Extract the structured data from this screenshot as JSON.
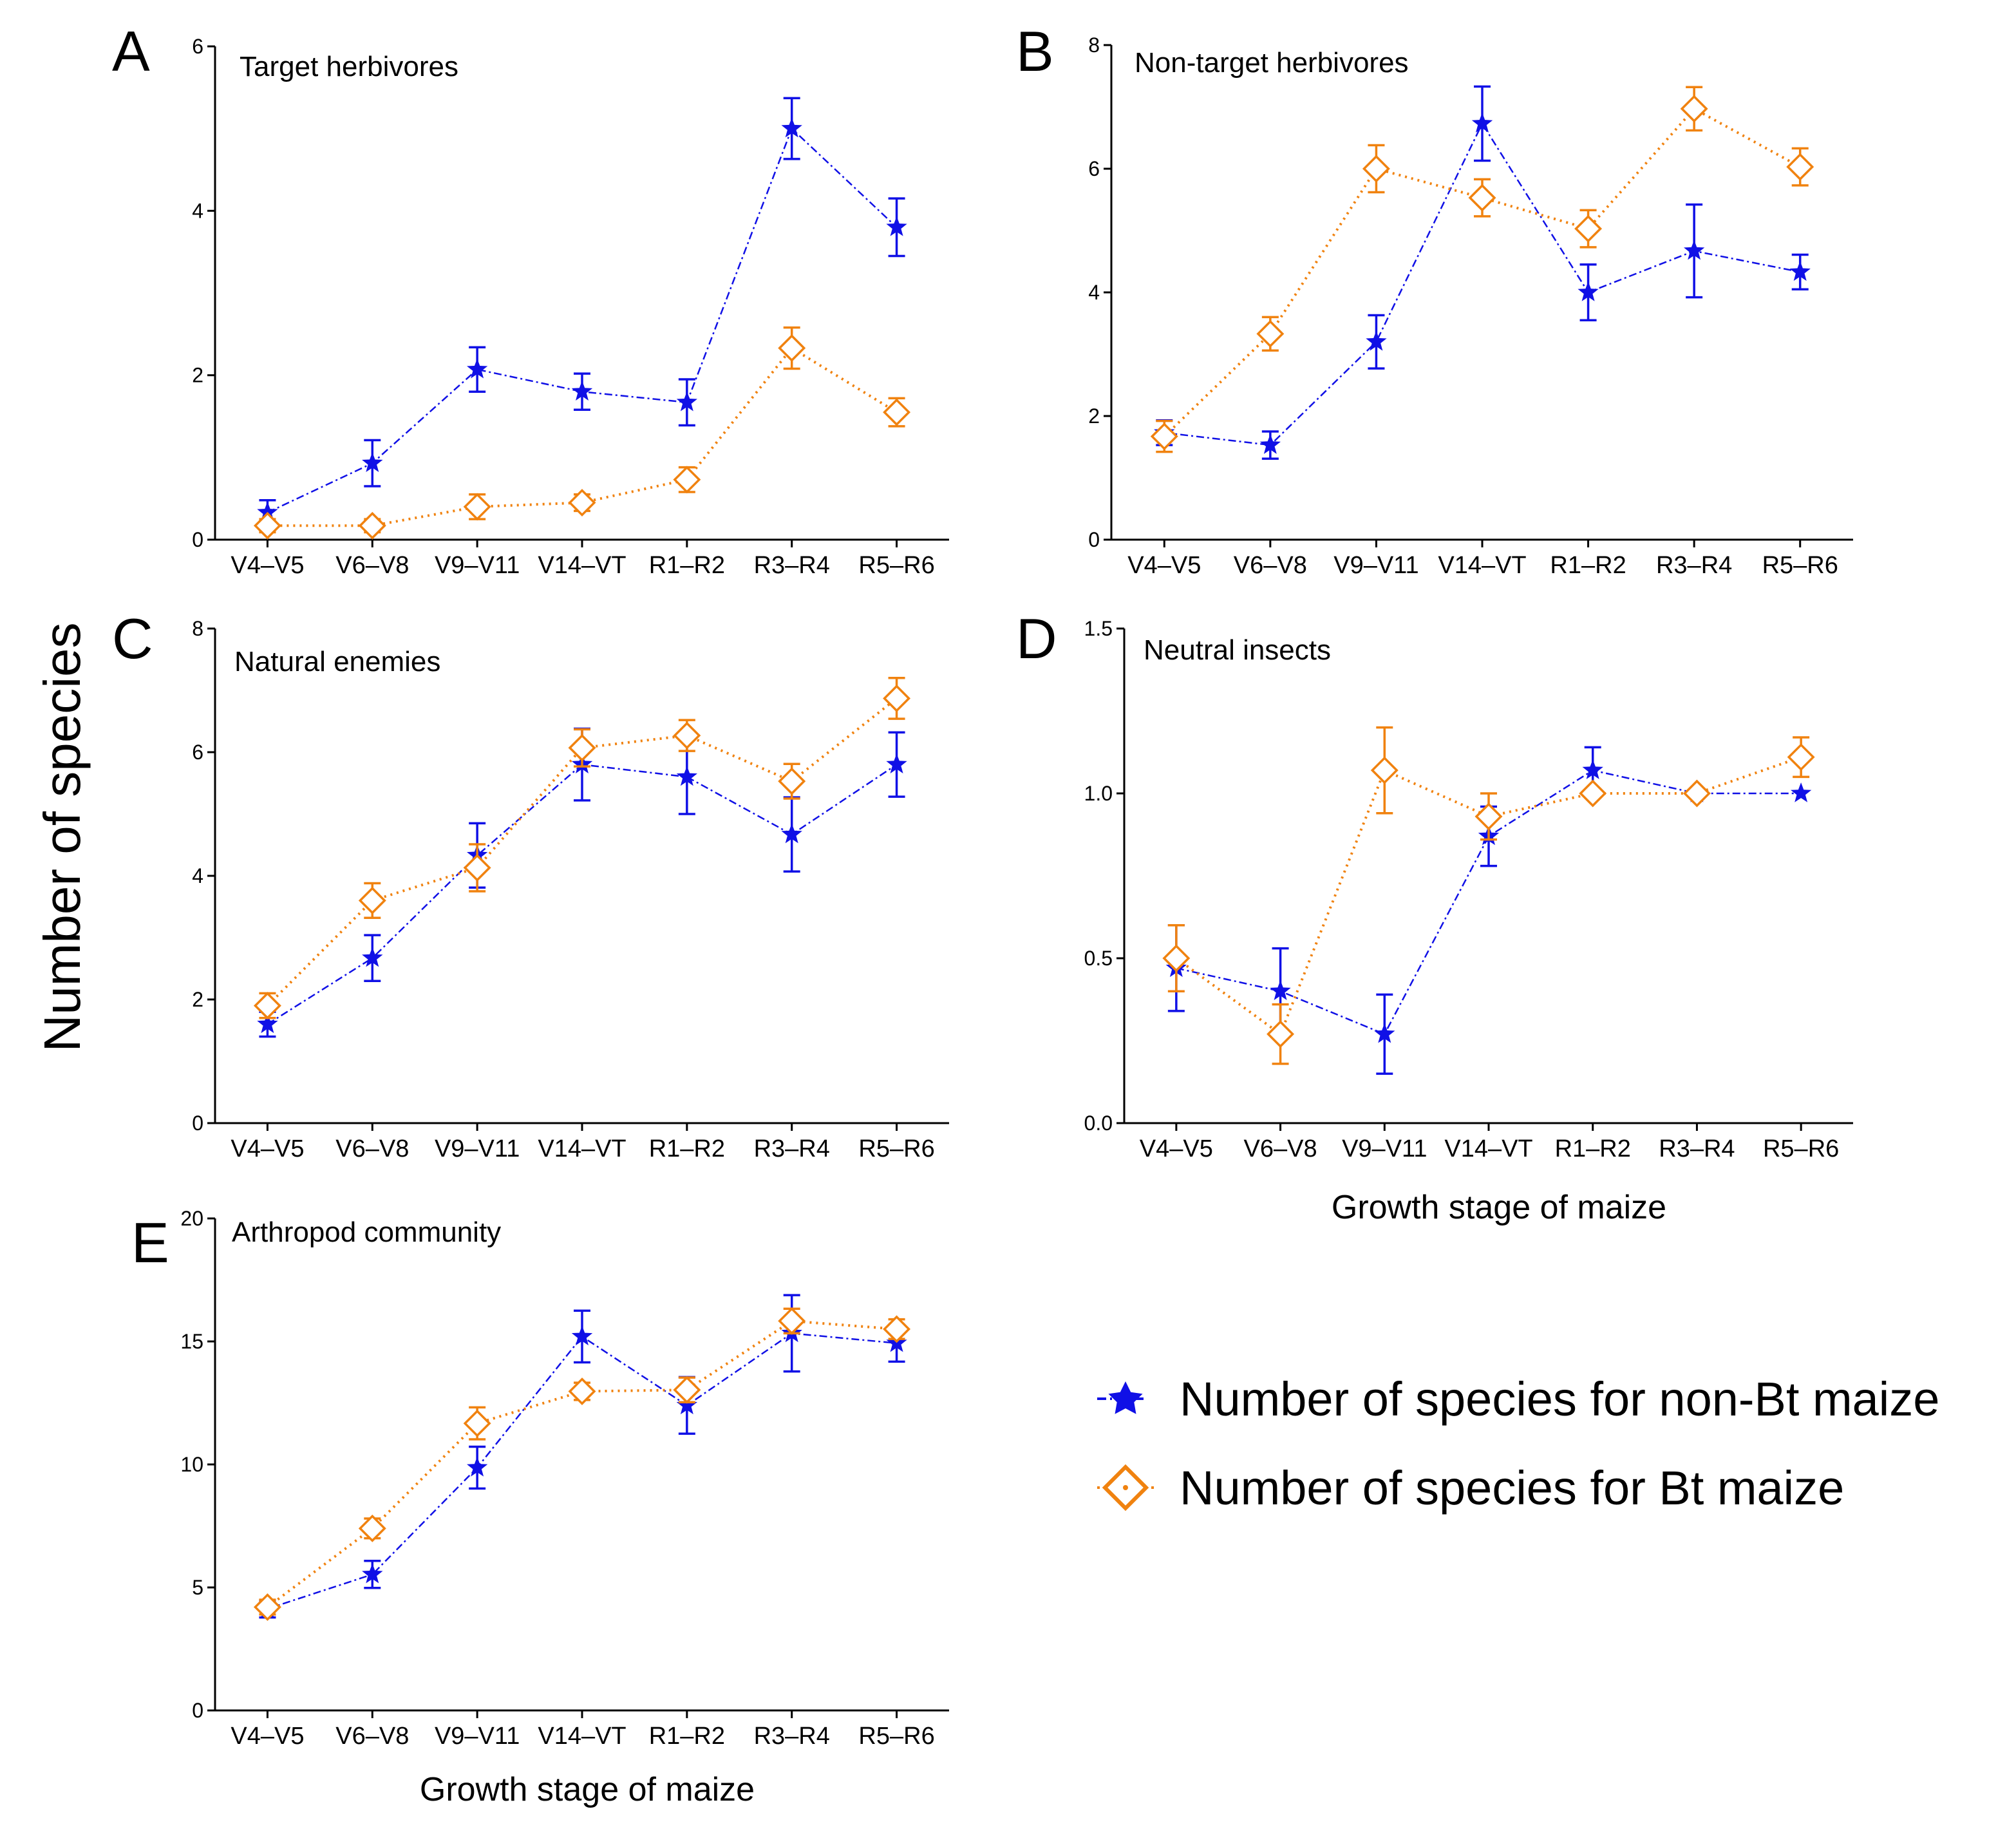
{
  "figure": {
    "y_axis_title": "Number of species",
    "x_axis_title": "Growth stage of maize"
  },
  "legend": {
    "nonbt_label": "Number of species for non-Bt maize",
    "bt_label": "Number of species for Bt maize"
  },
  "colors": {
    "nonbt": "#1010e6",
    "bt": "#f0820f",
    "axis": "#000000"
  },
  "chart_data": [
    {
      "panel": "A",
      "type": "line",
      "title": "Target herbivores",
      "categories": [
        "V4–V5",
        "V6–V8",
        "V9–V11",
        "V14–VT",
        "R1–R2",
        "R3–R4",
        "R5–R6"
      ],
      "ylim": [
        0,
        6
      ],
      "yticks": [
        0,
        2,
        4,
        6
      ],
      "ytick_labels": [
        "0",
        "2",
        "4",
        "6"
      ],
      "xlabel": "",
      "series": [
        {
          "name": "non-Bt",
          "values": [
            0.33,
            0.93,
            2.07,
            1.8,
            1.67,
            5.0,
            3.8
          ],
          "errors": [
            0.15,
            0.28,
            0.27,
            0.22,
            0.28,
            0.37,
            0.35
          ]
        },
        {
          "name": "Bt",
          "values": [
            0.17,
            0.17,
            0.4,
            0.45,
            0.73,
            2.33,
            1.55
          ],
          "errors": [
            0.08,
            0.08,
            0.15,
            0.1,
            0.15,
            0.25,
            0.17
          ]
        }
      ]
    },
    {
      "panel": "B",
      "type": "line",
      "title": "Non-target herbivores",
      "categories": [
        "V4–V5",
        "V6–V8",
        "V9–V11",
        "V14–VT",
        "R1–R2",
        "R3–R4",
        "R5–R6"
      ],
      "ylim": [
        0,
        8
      ],
      "yticks": [
        0,
        2,
        4,
        6,
        8
      ],
      "ytick_labels": [
        "0",
        "2",
        "4",
        "6",
        "8"
      ],
      "xlabel": "",
      "series": [
        {
          "name": "non-Bt",
          "values": [
            1.73,
            1.53,
            3.2,
            6.73,
            4.0,
            4.67,
            4.33
          ],
          "errors": [
            0.2,
            0.22,
            0.43,
            0.6,
            0.45,
            0.75,
            0.28
          ]
        },
        {
          "name": "Bt",
          "values": [
            1.67,
            3.33,
            6.0,
            5.53,
            5.03,
            6.97,
            6.03
          ],
          "errors": [
            0.25,
            0.27,
            0.38,
            0.3,
            0.3,
            0.35,
            0.3
          ]
        }
      ]
    },
    {
      "panel": "C",
      "type": "line",
      "title": "Natural enemies",
      "categories": [
        "V4–V5",
        "V6–V8",
        "V9–V11",
        "V14–VT",
        "R1–R2",
        "R3–R4",
        "R5–R6"
      ],
      "ylim": [
        0,
        8
      ],
      "yticks": [
        0,
        2,
        4,
        6,
        8
      ],
      "ytick_labels": [
        "0",
        "2",
        "4",
        "6",
        "8"
      ],
      "xlabel": "",
      "series": [
        {
          "name": "non-Bt",
          "values": [
            1.6,
            2.67,
            4.33,
            5.8,
            5.6,
            4.67,
            5.8
          ],
          "errors": [
            0.2,
            0.37,
            0.52,
            0.58,
            0.6,
            0.6,
            0.52
          ]
        },
        {
          "name": "Bt",
          "values": [
            1.9,
            3.6,
            4.13,
            6.07,
            6.27,
            5.53,
            6.87
          ],
          "errors": [
            0.2,
            0.28,
            0.38,
            0.3,
            0.25,
            0.28,
            0.33
          ]
        }
      ]
    },
    {
      "panel": "D",
      "type": "line",
      "title": "Neutral insects",
      "categories": [
        "V4–V5",
        "V6–V8",
        "V9–V11",
        "V14–VT",
        "R1–R2",
        "R3–R4",
        "R5–R6"
      ],
      "ylim": [
        0,
        1.5
      ],
      "yticks": [
        0,
        0.5,
        1.0,
        1.5
      ],
      "ytick_labels": [
        "0.0",
        "0.5",
        "1.0",
        "1.5"
      ],
      "xlabel": "Growth stage of maize",
      "series": [
        {
          "name": "non-Bt",
          "values": [
            0.47,
            0.4,
            0.27,
            0.87,
            1.07,
            1.0,
            1.0
          ],
          "errors": [
            0.13,
            0.13,
            0.12,
            0.09,
            0.07,
            0.0,
            0.0
          ]
        },
        {
          "name": "Bt",
          "values": [
            0.5,
            0.27,
            1.07,
            0.93,
            1.0,
            1.0,
            1.11
          ],
          "errors": [
            0.1,
            0.09,
            0.13,
            0.07,
            0.0,
            0.0,
            0.06
          ]
        }
      ]
    },
    {
      "panel": "E",
      "type": "line",
      "title": "Arthropod community",
      "categories": [
        "V4–V5",
        "V6–V8",
        "V9–V11",
        "V14–VT",
        "R1–R2",
        "R3–R4",
        "R5–R6"
      ],
      "ylim": [
        0,
        20
      ],
      "yticks": [
        0,
        5,
        10,
        15,
        20
      ],
      "ytick_labels": [
        "0",
        "5",
        "10",
        "15",
        "20"
      ],
      "xlabel": "Growth stage of maize",
      "series": [
        {
          "name": "non-Bt",
          "values": [
            4.13,
            5.53,
            9.87,
            15.2,
            12.4,
            15.33,
            14.93
          ],
          "errors": [
            0.35,
            0.55,
            0.85,
            1.05,
            1.15,
            1.55,
            0.75
          ]
        },
        {
          "name": "Bt",
          "values": [
            4.2,
            7.4,
            11.67,
            12.97,
            13.03,
            15.83,
            15.5
          ],
          "errors": [
            0.3,
            0.4,
            0.65,
            0.35,
            0.5,
            0.5,
            0.4
          ]
        }
      ]
    }
  ]
}
